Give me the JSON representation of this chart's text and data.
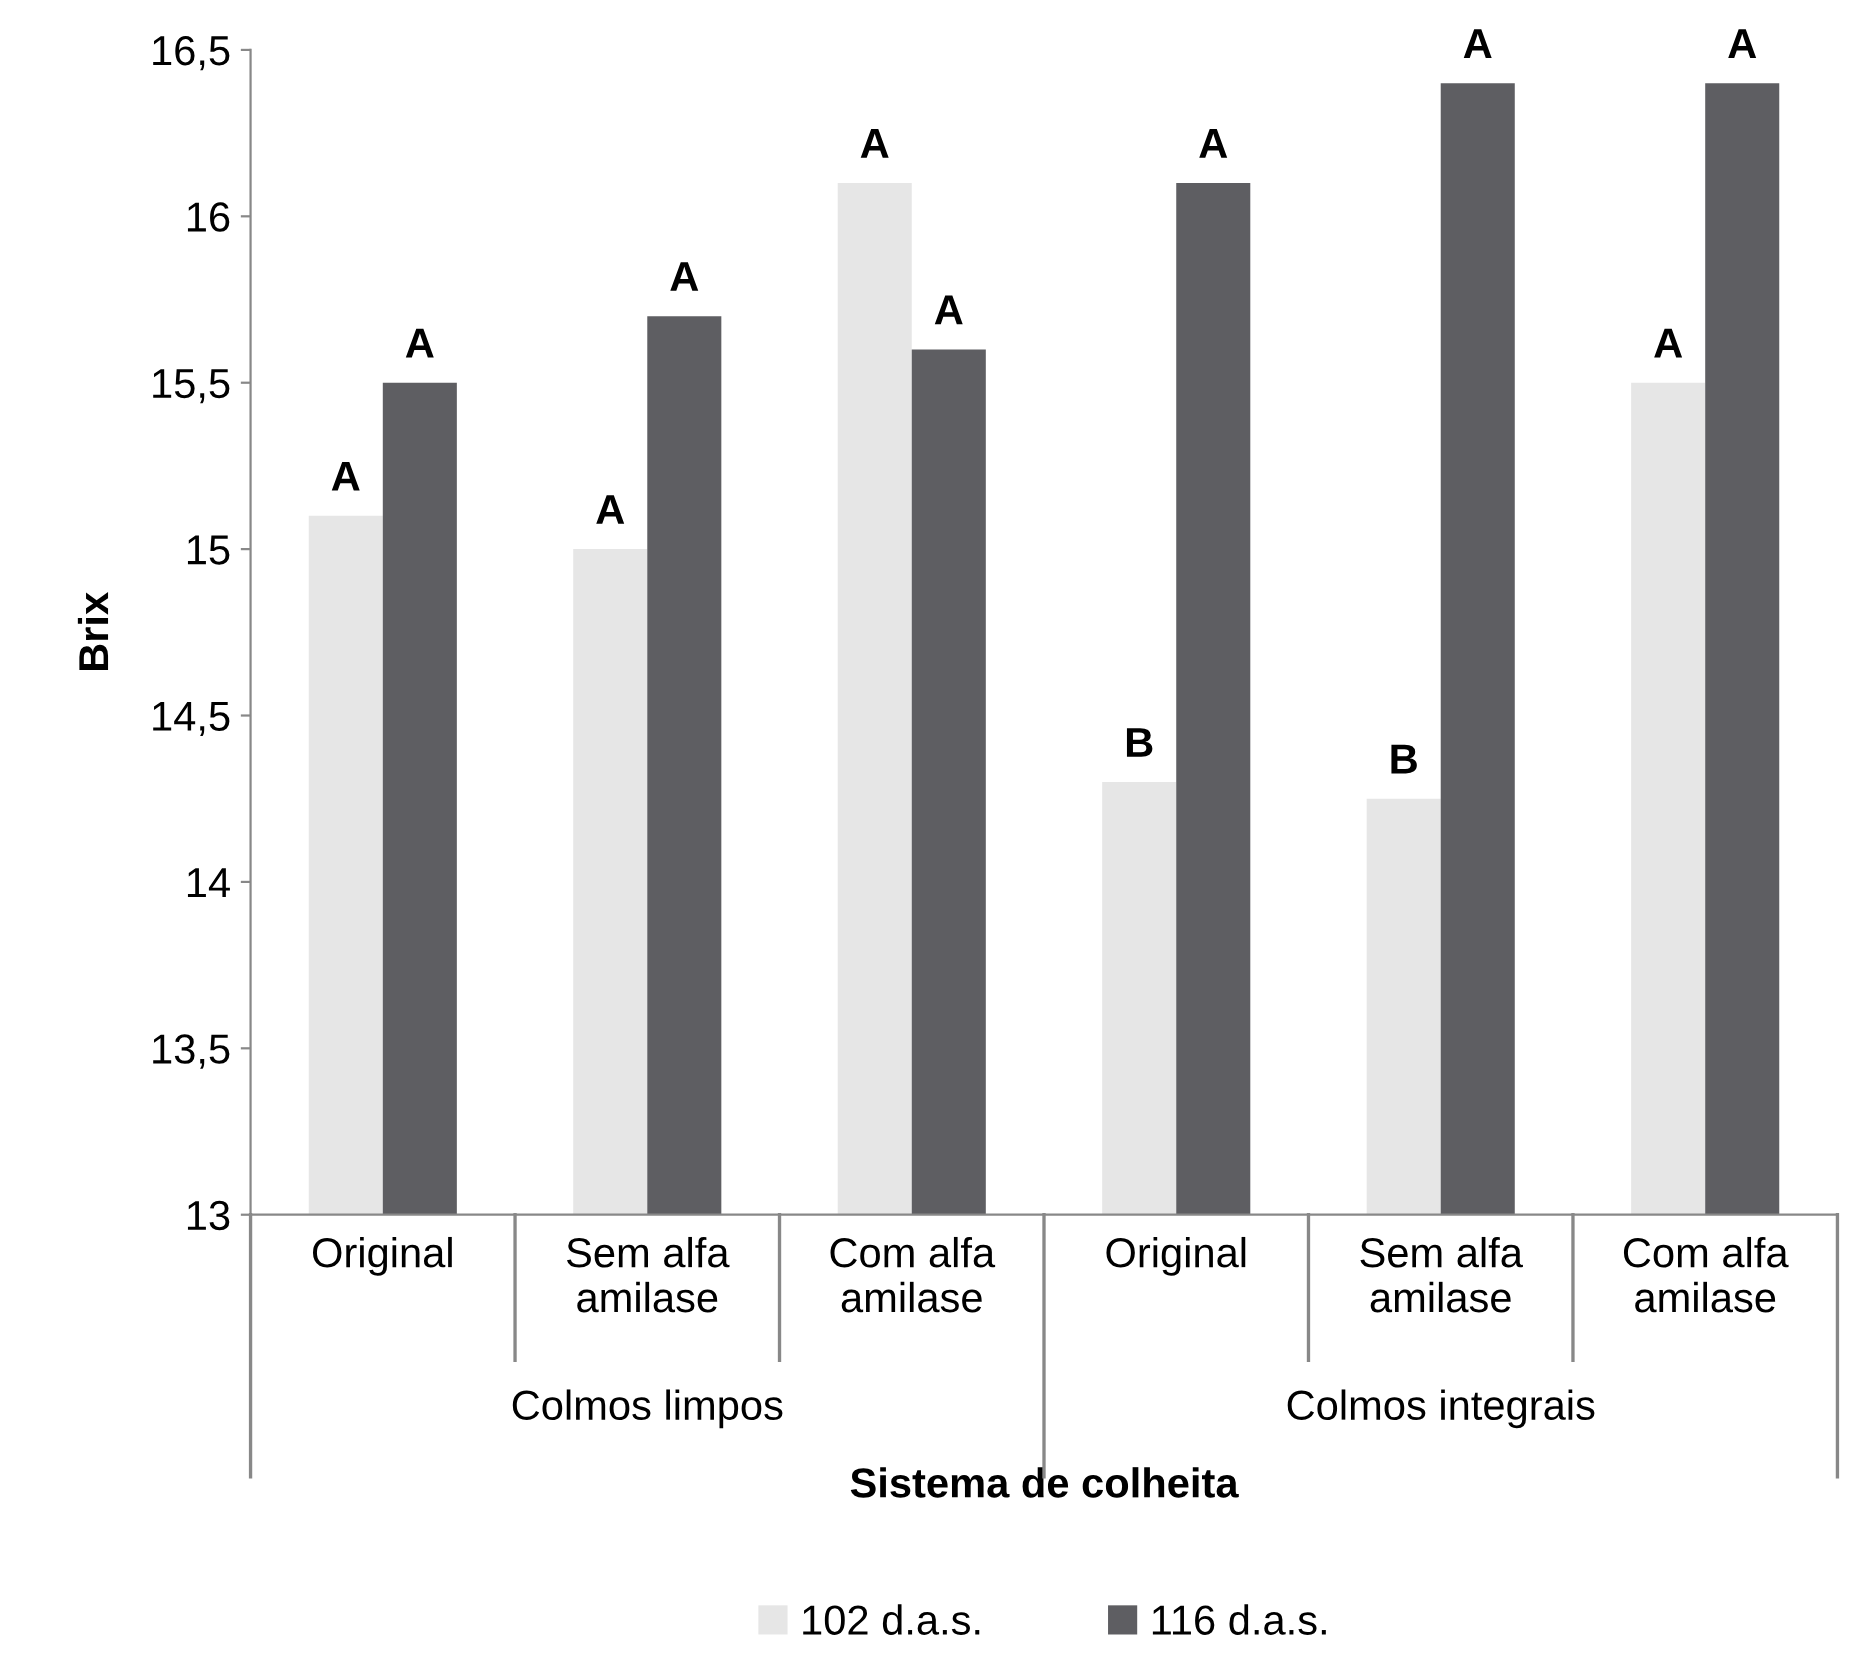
{
  "chart_data": {
    "type": "bar",
    "xlabel": "Sistema de colheita",
    "ylabel": "Brix",
    "categories": [
      "Original",
      "Sem alfa\namilase",
      "Com alfa\namilase",
      "Original",
      "Sem alfa\namilase",
      "Com alfa\namilase"
    ],
    "series": [
      {
        "name": "102 d.a.s.",
        "color": "#e6e6e6",
        "values": [
          15.1,
          15.0,
          16.1,
          14.3,
          14.25,
          15.5
        ],
        "value_labels": [
          "A",
          "A",
          "A",
          "B",
          "B",
          "A"
        ]
      },
      {
        "name": "116 d.a.s.",
        "color": "#5e5e62",
        "values": [
          15.5,
          15.7,
          15.6,
          16.1,
          16.4,
          16.4
        ],
        "value_labels": [
          "A",
          "A",
          "A",
          "A",
          "A",
          "A"
        ]
      }
    ],
    "annotations": [
      "Colmos limpos",
      "Colmos integrais"
    ],
    "ylim": [
      13,
      16.5
    ],
    "yticks": [
      {
        "value": 13,
        "label": "13"
      },
      {
        "value": 13.5,
        "label": "13,5"
      },
      {
        "value": 14,
        "label": "14"
      },
      {
        "value": 14.5,
        "label": "14,5"
      },
      {
        "value": 15,
        "label": "15"
      },
      {
        "value": 15.5,
        "label": "15,5"
      },
      {
        "value": 16,
        "label": "16"
      },
      {
        "value": 16.5,
        "label": "16,5"
      }
    ],
    "grid": false,
    "legend": "bottom"
  }
}
